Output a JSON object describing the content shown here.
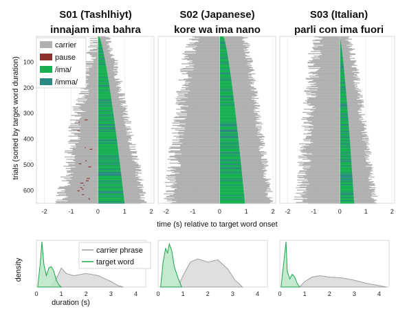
{
  "chart_data": [
    {
      "type": "bar",
      "title": "S01 (Tashlhiyt)",
      "subtitle": "innajam ima bahra",
      "xlim": [
        -2.3,
        2.1
      ],
      "xticks": [
        -2,
        -1,
        0,
        1,
        2
      ],
      "ylim": [
        0,
        650
      ],
      "yticks": [
        100,
        200,
        300,
        400,
        500,
        600
      ],
      "n_trials": 650,
      "carrier_start_s": {
        "first": -0.1,
        "last": -1.35
      },
      "carrier_end_s": {
        "first": 0.35,
        "last": 1.75
      },
      "target_end_s": {
        "first": 0.05,
        "last": 1.0
      },
      "legend": [
        "carrier",
        "pause",
        "/ima/",
        "/imma/"
      ],
      "legend_position": "top-left"
    },
    {
      "type": "bar",
      "title": "S02 (Japanese)",
      "subtitle": "kore wa ima nano",
      "xlim": [
        -2.3,
        2.1
      ],
      "xticks": [
        -2,
        -1,
        0,
        1,
        2
      ],
      "ylim": [
        0,
        650
      ],
      "yticks": [
        100,
        200,
        300,
        400,
        500,
        600
      ],
      "n_trials": 650,
      "carrier_start_s": {
        "first": -1.0,
        "last": -1.9
      },
      "carrier_end_s": {
        "first": 0.95,
        "last": 1.9
      },
      "target_end_s": {
        "first": 0.15,
        "last": 0.95
      }
    },
    {
      "type": "bar",
      "title": "S03 (Italian)",
      "subtitle": "parli con ima fuori",
      "xlim": [
        -2.3,
        2.1
      ],
      "xticks": [
        -2,
        -1,
        0,
        1,
        2
      ],
      "ylim": [
        0,
        650
      ],
      "yticks": [
        100,
        200,
        300,
        400,
        500,
        600
      ],
      "n_trials": 650,
      "carrier_start_s": {
        "first": -0.85,
        "last": -1.5
      },
      "carrier_end_s": {
        "first": 0.35,
        "last": 1.35
      },
      "target_end_s": {
        "first": 0.0,
        "last": 0.55
      }
    },
    {
      "type": "area",
      "xlabel": "duration (s)",
      "ylabel": "density",
      "xlim": [
        0,
        4.4
      ],
      "xticks": [
        0,
        1,
        2,
        3,
        4
      ],
      "legend": [
        "carrier phrase",
        "target word"
      ],
      "legend_position": "top-right",
      "series": [
        {
          "name": "carrier phrase",
          "x": [
            0.6,
            0.8,
            1.0,
            1.2,
            1.5,
            2.0,
            2.5,
            3.0,
            3.3,
            3.5
          ],
          "values": [
            0.0,
            0.18,
            0.42,
            0.3,
            0.25,
            0.3,
            0.25,
            0.12,
            0.03,
            0.0
          ]
        },
        {
          "name": "target word",
          "x": [
            0.05,
            0.15,
            0.22,
            0.3,
            0.4,
            0.5,
            0.6,
            0.7,
            0.8,
            0.9,
            1.0
          ],
          "values": [
            0.0,
            0.5,
            1.0,
            0.5,
            0.25,
            0.42,
            0.45,
            0.35,
            0.15,
            0.05,
            0.0
          ]
        }
      ]
    },
    {
      "type": "area",
      "xlim": [
        0,
        4.4
      ],
      "xticks": [
        0,
        1,
        2,
        3,
        4
      ],
      "series": [
        {
          "name": "carrier phrase",
          "x": [
            0.8,
            1.0,
            1.3,
            1.6,
            2.0,
            2.4,
            2.8,
            3.1,
            3.4
          ],
          "values": [
            0.0,
            0.25,
            0.55,
            0.62,
            0.55,
            0.6,
            0.4,
            0.15,
            0.0
          ]
        },
        {
          "name": "target word",
          "x": [
            0.1,
            0.2,
            0.3,
            0.38,
            0.45,
            0.55,
            0.65,
            0.8,
            0.95
          ],
          "values": [
            0.0,
            0.55,
            0.85,
            0.75,
            0.95,
            0.8,
            0.45,
            0.2,
            0.0
          ]
        }
      ]
    },
    {
      "type": "area",
      "xlim": [
        0,
        4.4
      ],
      "xticks": [
        0,
        1,
        2,
        3,
        4
      ],
      "series": [
        {
          "name": "carrier phrase",
          "x": [
            0.8,
            1.0,
            1.3,
            1.6,
            2.0,
            2.5,
            3.0,
            3.5,
            4.0,
            4.3
          ],
          "values": [
            0.0,
            0.12,
            0.22,
            0.25,
            0.22,
            0.2,
            0.15,
            0.08,
            0.03,
            0.0
          ]
        },
        {
          "name": "target word",
          "x": [
            0.05,
            0.15,
            0.25,
            0.3,
            0.4,
            0.5,
            0.6,
            0.7,
            0.8
          ],
          "values": [
            0.0,
            0.5,
            1.0,
            0.35,
            0.18,
            0.28,
            0.22,
            0.08,
            0.0
          ]
        }
      ]
    }
  ],
  "shared": {
    "ylabel_trials": "trials (sorted by target word duration)",
    "xlabel_onset": "time (s) relative to target word onset"
  },
  "colors": {
    "carrier": "#b0b0b0",
    "pause": "#8b2f2f",
    "ima": "#16b050",
    "imma": "#2a8a80",
    "carrier_fill": "#d9d9d9",
    "carrier_line": "#9e9e9e",
    "target_fill": "#b8e6c4",
    "target_line": "#1aa34a"
  }
}
